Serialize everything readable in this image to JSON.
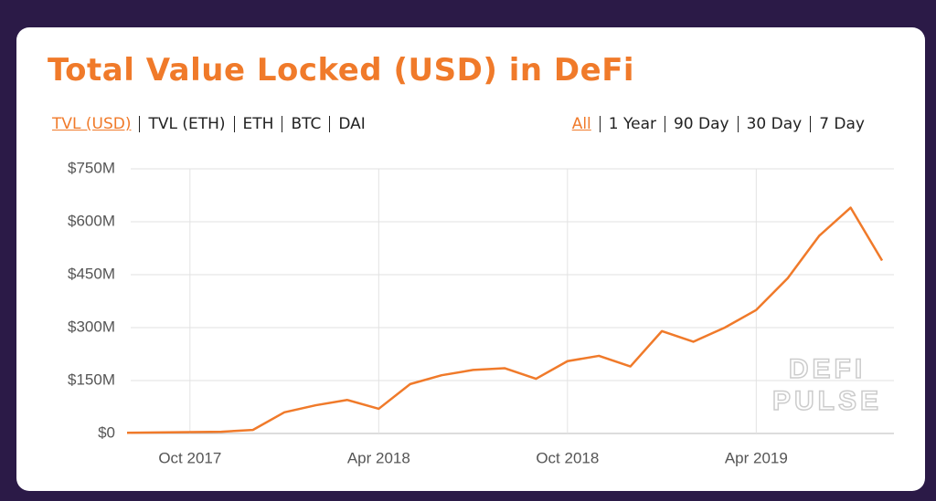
{
  "chart_data": {
    "type": "line",
    "title": "Total Value Locked (USD) in DeFi",
    "metric_tabs": [
      "TVL (USD)",
      "TVL (ETH)",
      "ETH",
      "BTC",
      "DAI"
    ],
    "range_tabs": [
      "All",
      "1 Year",
      "90 Day",
      "30 Day",
      "7 Day"
    ],
    "x": [
      "2017-08",
      "2017-09",
      "2017-10",
      "2017-11",
      "2017-12",
      "2018-01",
      "2018-02",
      "2018-03",
      "2018-04",
      "2018-05",
      "2018-06",
      "2018-07",
      "2018-08",
      "2018-09",
      "2018-10",
      "2018-11",
      "2018-12",
      "2019-01",
      "2019-02",
      "2019-03",
      "2019-04",
      "2019-05",
      "2019-06",
      "2019-07",
      "2019-08"
    ],
    "series": [
      {
        "name": "TVL (USD)",
        "color": "#f07a2a",
        "values": [
          2,
          3,
          4,
          5,
          10,
          60,
          80,
          95,
          70,
          140,
          165,
          180,
          185,
          155,
          205,
          220,
          190,
          290,
          260,
          300,
          350,
          440,
          560,
          640,
          490
        ]
      }
    ],
    "xlim": [
      "2017-08",
      "2019-08"
    ],
    "xticks": [
      {
        "value": "2017-10",
        "label": "Oct 2017"
      },
      {
        "value": "2018-04",
        "label": "Apr 2018"
      },
      {
        "value": "2018-10",
        "label": "Oct 2018"
      },
      {
        "value": "2019-04",
        "label": "Apr 2019"
      }
    ],
    "ylim": [
      0,
      750
    ],
    "yticks": [
      {
        "value": 0,
        "label": "$0"
      },
      {
        "value": 150,
        "label": "$150M"
      },
      {
        "value": 300,
        "label": "$300M"
      },
      {
        "value": 450,
        "label": "$450M"
      },
      {
        "value": 600,
        "label": "$600M"
      },
      {
        "value": 750,
        "label": "$750M"
      }
    ],
    "grid": true,
    "watermark": [
      "DEFI",
      "PULSE"
    ]
  }
}
